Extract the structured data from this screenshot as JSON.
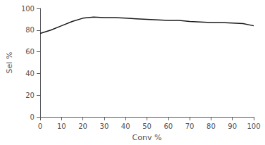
{
  "chart_data": {
    "type": "line",
    "x": [
      0,
      5,
      10,
      15,
      20,
      25,
      30,
      35,
      40,
      45,
      50,
      55,
      60,
      65,
      70,
      75,
      80,
      85,
      90,
      95,
      100
    ],
    "values": [
      77,
      80,
      84,
      88,
      91,
      92,
      91.5,
      91.5,
      91,
      90.5,
      90,
      89.5,
      89,
      89,
      88,
      87.5,
      87,
      87,
      86.5,
      86,
      84
    ],
    "color": "#1a1a1a",
    "xlim": [
      0,
      100
    ],
    "ylim": [
      0,
      100
    ],
    "xticks": [
      0,
      10,
      20,
      30,
      40,
      50,
      60,
      70,
      80,
      90,
      100
    ],
    "yticks": [
      0,
      20,
      40,
      60,
      80,
      100
    ],
    "xlabel": "Conv %",
    "ylabel": "Sel %",
    "grid": false
  }
}
